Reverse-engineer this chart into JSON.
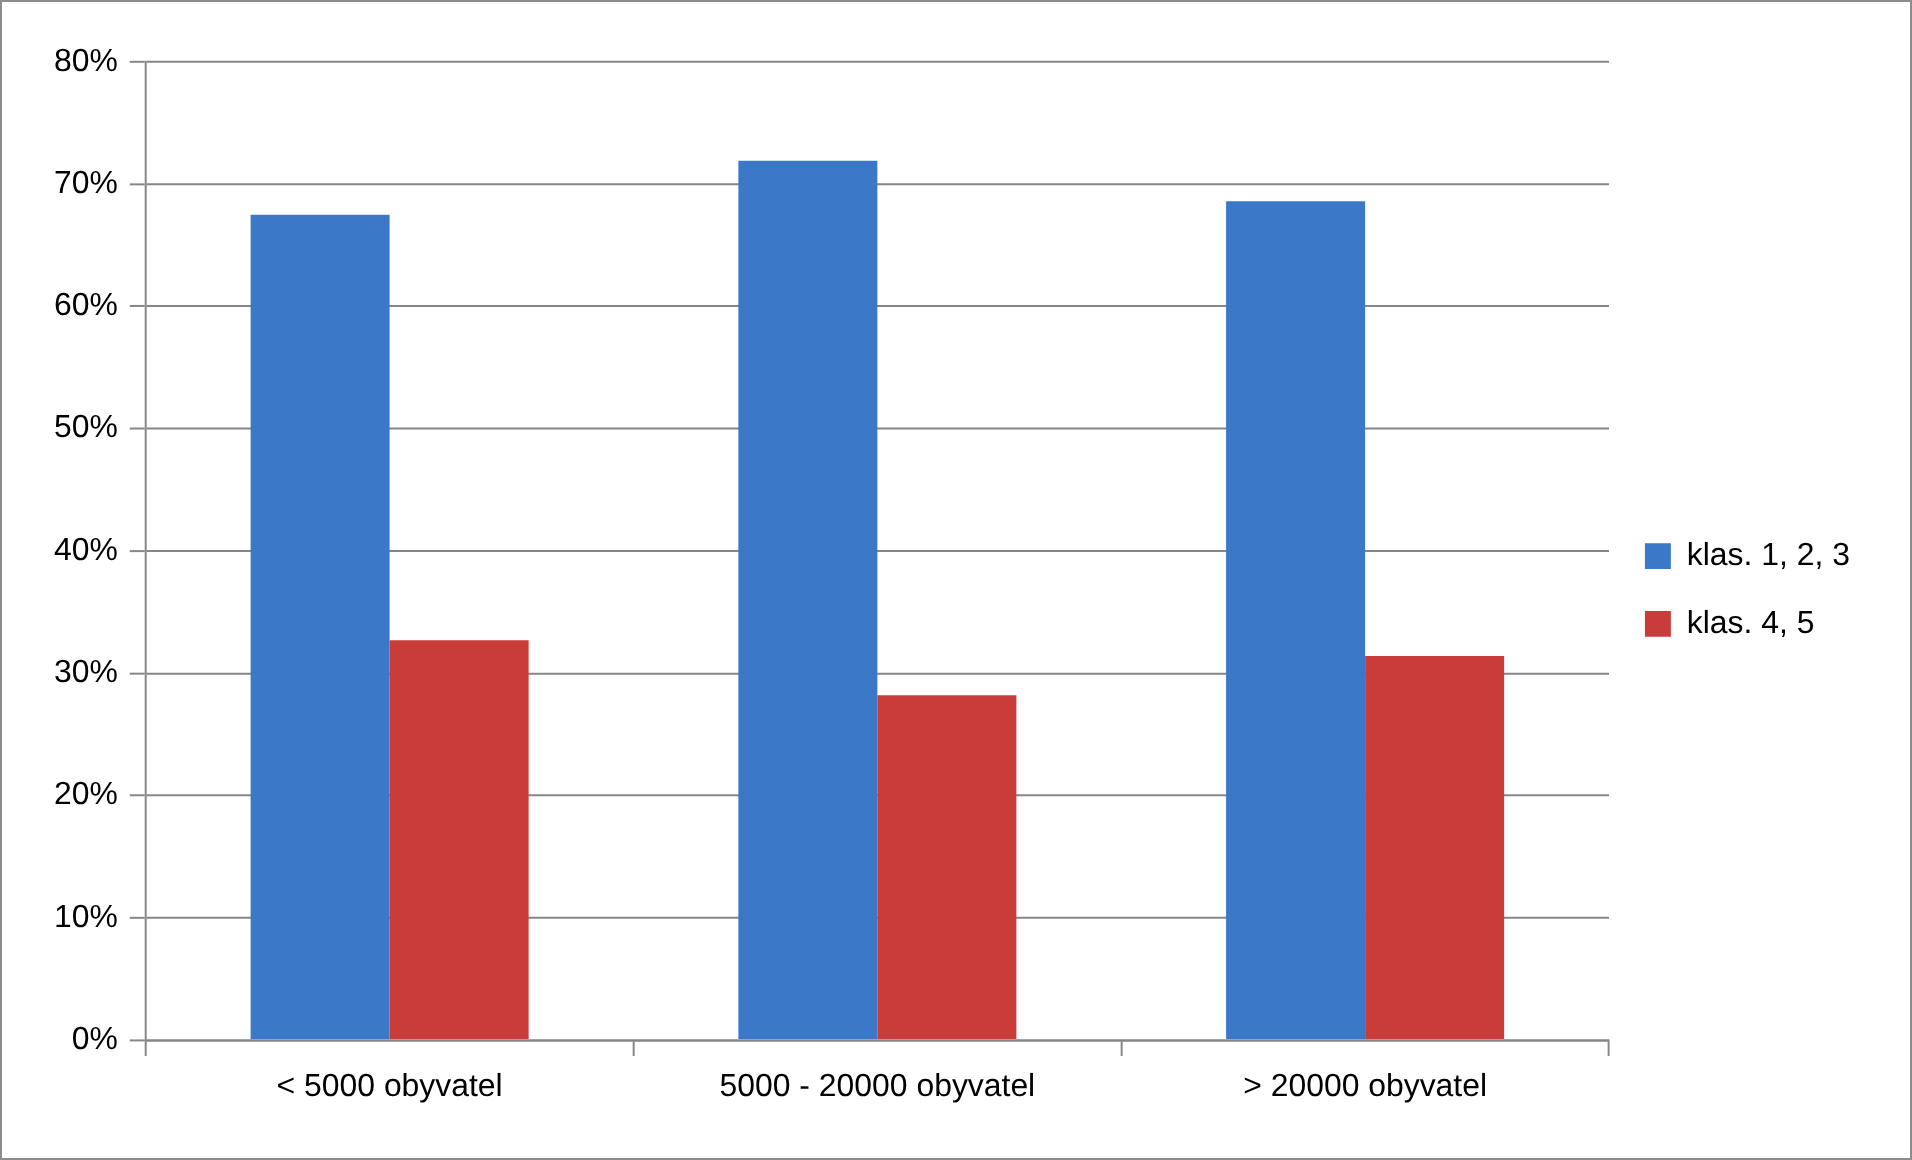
{
  "chart_data": {
    "type": "bar",
    "categories": [
      "< 5000 obyvatel",
      "5000 - 20000 obyvatel",
      "> 20000 obyvatel"
    ],
    "series": [
      {
        "name": "klas. 1, 2, 3",
        "color": "#3c78c8",
        "values": [
          67.5,
          71.9,
          68.6
        ]
      },
      {
        "name": "klas. 4, 5",
        "color": "#c93c3a",
        "values": [
          32.7,
          28.2,
          31.4
        ]
      }
    ],
    "ylim": [
      0,
      80
    ],
    "yticks": [
      {
        "value": 0,
        "label": "0%"
      },
      {
        "value": 10,
        "label": "10%"
      },
      {
        "value": 20,
        "label": "20%"
      },
      {
        "value": 30,
        "label": "30%"
      },
      {
        "value": 40,
        "label": "40%"
      },
      {
        "value": 50,
        "label": "50%"
      },
      {
        "value": 60,
        "label": "60%"
      },
      {
        "value": 70,
        "label": "70%"
      },
      {
        "value": 80,
        "label": "80%"
      }
    ],
    "grid": "y",
    "legend": "right"
  }
}
